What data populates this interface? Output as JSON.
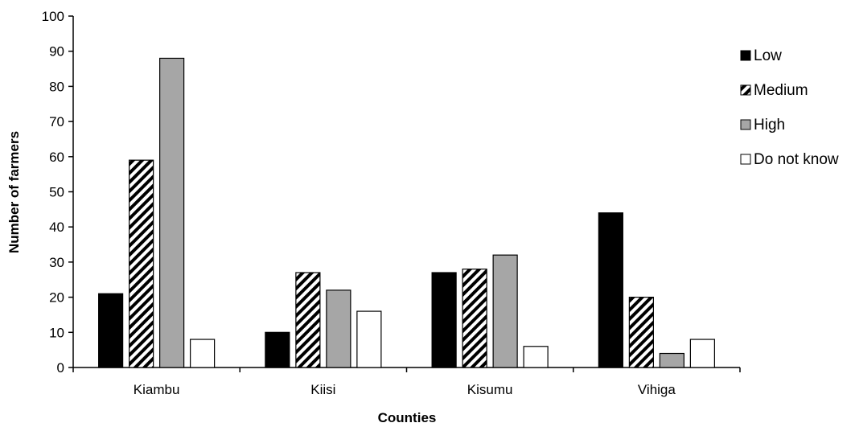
{
  "chart_data": {
    "type": "bar",
    "categories": [
      "Kiambu",
      "Kiisi",
      "Kisumu",
      "Vihiga"
    ],
    "series": [
      {
        "name": "Low",
        "values": [
          21,
          10,
          27,
          44
        ],
        "fill": "solid-black"
      },
      {
        "name": "Medium",
        "values": [
          59,
          27,
          28,
          20
        ],
        "fill": "diagonal-hatch"
      },
      {
        "name": "High",
        "values": [
          88,
          22,
          32,
          4
        ],
        "fill": "solid-gray"
      },
      {
        "name": "Do not know",
        "values": [
          8,
          16,
          6,
          8
        ],
        "fill": "white"
      }
    ],
    "xlabel": "Counties",
    "ylabel": "Number of farmers",
    "ylim": [
      0,
      100
    ],
    "yticks": [
      0,
      10,
      20,
      30,
      40,
      50,
      60,
      70,
      80,
      90,
      100
    ],
    "grid": false,
    "legend_position": "right",
    "colors": {
      "black": "#000000",
      "gray": "#a6a6a6",
      "white": "#ffffff"
    }
  }
}
